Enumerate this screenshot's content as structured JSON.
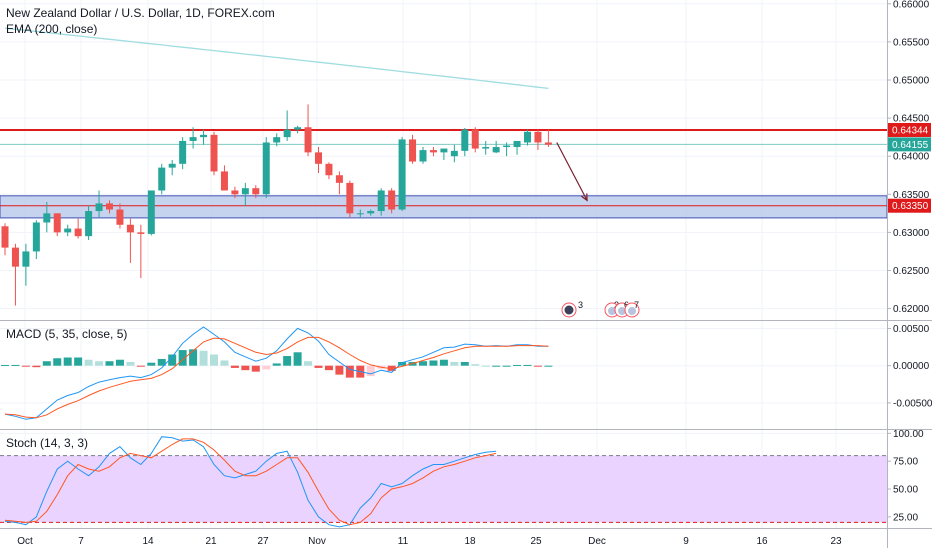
{
  "header": {
    "title": "New Zealand Dollar / U.S. Dollar, 1D, FOREX.com",
    "ema_label": "EMA (200, close)",
    "macd_label": "MACD (5, 35, close, 5)",
    "stoch_label": "Stoch (14, 3, 3)"
  },
  "colors": {
    "up": "#26a69a",
    "down": "#ef5350",
    "ema": "#9fdde0",
    "macd_line": "#2196f3",
    "signal_line": "#ff5722",
    "stoch_k": "#2196f3",
    "stoch_d": "#ff5722",
    "resistance": "#e0191b",
    "support_zone": "#b3c4e8",
    "stoch_band": "#e6ccff"
  },
  "events": {
    "left_badge_count": "3",
    "right_badge_digits": [
      "2",
      "6",
      "7"
    ]
  },
  "chart_data": [
    {
      "type": "candlestick",
      "title": "New Zealand Dollar / U.S. Dollar, 1D, FOREX.com",
      "ylim": [
        0.6185,
        0.6605
      ],
      "y_ticks": [
        "0.66000",
        "0.65500",
        "0.65000",
        "0.64500",
        "0.64000",
        "0.63500",
        "0.63000",
        "0.62500",
        "0.62000"
      ],
      "x_ticks": [
        "Oct",
        "7",
        "14",
        "21",
        "27",
        "Nov",
        "11",
        "18",
        "25",
        "Dec",
        "9",
        "16",
        "23"
      ],
      "ohlc": [
        [
          0.6308,
          0.6312,
          0.627,
          0.628
        ],
        [
          0.628,
          0.6285,
          0.6204,
          0.6255
        ],
        [
          0.6255,
          0.6285,
          0.623,
          0.6275
        ],
        [
          0.6275,
          0.6316,
          0.6265,
          0.6313
        ],
        [
          0.6313,
          0.634,
          0.63,
          0.6325
        ],
        [
          0.6325,
          0.6325,
          0.6295,
          0.63
        ],
        [
          0.63,
          0.631,
          0.6295,
          0.6305
        ],
        [
          0.6305,
          0.6318,
          0.6292,
          0.6295
        ],
        [
          0.6295,
          0.6335,
          0.629,
          0.6328
        ],
        [
          0.6328,
          0.6355,
          0.632,
          0.6338
        ],
        [
          0.6338,
          0.6342,
          0.6325,
          0.633
        ],
        [
          0.633,
          0.6338,
          0.6305,
          0.631
        ],
        [
          0.631,
          0.6318,
          0.626,
          0.63
        ],
        [
          0.63,
          0.631,
          0.624,
          0.6298
        ],
        [
          0.6298,
          0.6355,
          0.6296,
          0.6355
        ],
        [
          0.6355,
          0.639,
          0.635,
          0.6385
        ],
        [
          0.6385,
          0.6395,
          0.6375,
          0.639
        ],
        [
          0.639,
          0.6425,
          0.6383,
          0.642
        ],
        [
          0.642,
          0.6438,
          0.641,
          0.6425
        ],
        [
          0.6425,
          0.6435,
          0.6415,
          0.6428
        ],
        [
          0.6428,
          0.6432,
          0.6375,
          0.638
        ],
        [
          0.638,
          0.6388,
          0.6355,
          0.6355
        ],
        [
          0.6355,
          0.636,
          0.6345,
          0.635
        ],
        [
          0.635,
          0.6365,
          0.6335,
          0.6358
        ],
        [
          0.6358,
          0.6362,
          0.6345,
          0.635
        ],
        [
          0.635,
          0.6425,
          0.6345,
          0.6418
        ],
        [
          0.6418,
          0.643,
          0.6413,
          0.6425
        ],
        [
          0.6425,
          0.646,
          0.642,
          0.6435
        ],
        [
          0.6435,
          0.644,
          0.643,
          0.6438
        ],
        [
          0.6438,
          0.6468,
          0.64,
          0.6405
        ],
        [
          0.6405,
          0.6412,
          0.6378,
          0.639
        ],
        [
          0.639,
          0.6392,
          0.637,
          0.6375
        ],
        [
          0.6375,
          0.638,
          0.635,
          0.6365
        ],
        [
          0.6365,
          0.6368,
          0.632,
          0.6325
        ],
        [
          0.6325,
          0.633,
          0.632,
          0.6325
        ],
        [
          0.6325,
          0.633,
          0.6322,
          0.6328
        ],
        [
          0.6328,
          0.6358,
          0.6322,
          0.6355
        ],
        [
          0.6355,
          0.6358,
          0.6325,
          0.633
        ],
        [
          0.633,
          0.6425,
          0.6328,
          0.6422
        ],
        [
          0.6422,
          0.6428,
          0.639,
          0.6393
        ],
        [
          0.6393,
          0.6412,
          0.639,
          0.6408
        ],
        [
          0.6408,
          0.6412,
          0.64,
          0.6405
        ],
        [
          0.6405,
          0.641,
          0.6395,
          0.641
        ],
        [
          0.64,
          0.6415,
          0.6392,
          0.6407
        ],
        [
          0.6407,
          0.6437,
          0.64,
          0.6435
        ],
        [
          0.6435,
          0.6438,
          0.6405,
          0.641
        ],
        [
          0.641,
          0.642,
          0.6402,
          0.6412
        ],
        [
          0.6405,
          0.642,
          0.6404,
          0.6412
        ],
        [
          0.6412,
          0.6418,
          0.64,
          0.6414
        ],
        [
          0.6412,
          0.6418,
          0.6402,
          0.642
        ],
        [
          0.6418,
          0.6435,
          0.6414,
          0.6432
        ],
        [
          0.6432,
          0.6435,
          0.6408,
          0.6418
        ],
        [
          0.6418,
          0.6435,
          0.6412,
          0.6415
        ]
      ],
      "ema200": {
        "from_index": 0,
        "start": 0.6568,
        "end": 0.6489
      },
      "resistance": {
        "value": 0.64344,
        "label": "0.64344"
      },
      "last_price": {
        "value": 0.64155,
        "label": "0.64155"
      },
      "support_zone": {
        "top": 0.6348,
        "bottom": 0.6319
      },
      "support_line": {
        "value": 0.6335,
        "label": "0.63350"
      },
      "projection_arrow": {
        "from": [
          52.8,
          0.6418
        ],
        "to": [
          55.7,
          0.6342
        ]
      }
    },
    {
      "type": "line",
      "title": "MACD (5, 35, close, 5)",
      "ylim": [
        -0.0085,
        0.006
      ],
      "y_ticks": [
        "0.00500",
        "0.00000",
        "-0.00500"
      ],
      "series": [
        {
          "name": "MACD",
          "values": [
            -0.0065,
            -0.0068,
            -0.0072,
            -0.007,
            -0.0058,
            -0.0046,
            -0.004,
            -0.0036,
            -0.0028,
            -0.0022,
            -0.0019,
            -0.0016,
            -0.0014,
            -0.0016,
            -0.0012,
            -0.0003,
            0.0012,
            0.003,
            0.0042,
            0.0052,
            0.0042,
            0.0032,
            0.0018,
            0.0012,
            0.0006,
            0.001,
            0.002,
            0.0036,
            0.005,
            0.0044,
            0.0033,
            0.0015,
            0.0005,
            -0.0005,
            -0.0008,
            -0.0011,
            -0.0006,
            -0.0009,
            0.0004,
            0.0008,
            0.0012,
            0.0018,
            0.0024,
            0.0025,
            0.0029,
            0.0028,
            0.0026,
            0.0027,
            0.0026,
            0.0028,
            0.0028,
            0.0026,
            0.0026
          ]
        },
        {
          "name": "Signal",
          "values": [
            -0.0065,
            -0.0066,
            -0.0069,
            -0.007,
            -0.0066,
            -0.0058,
            -0.0052,
            -0.0047,
            -0.004,
            -0.0034,
            -0.0029,
            -0.0025,
            -0.0021,
            -0.0019,
            -0.0017,
            -0.0012,
            -0.0004,
            0.0008,
            0.002,
            0.0032,
            0.0037,
            0.0036,
            0.003,
            0.0024,
            0.0018,
            0.0015,
            0.0017,
            0.0023,
            0.0032,
            0.0038,
            0.0038,
            0.0032,
            0.0024,
            0.0015,
            0.0007,
            0.0001,
            -0.0002,
            -0.0004,
            -0.0001,
            0.0003,
            0.0007,
            0.0011,
            0.0016,
            0.002,
            0.0024,
            0.0026,
            0.0026,
            0.0026,
            0.0026,
            0.0027,
            0.0027,
            0.0027,
            0.0026
          ]
        }
      ],
      "histogram": {
        "values": [
          0.0001,
          0.0001,
          -0.0001,
          -0.0002,
          0.0006,
          0.001,
          0.0011,
          0.0011,
          0.0008,
          0.0006,
          0.0006,
          0.0008,
          0.0005,
          -0.0001,
          0.0004,
          0.0009,
          0.0015,
          0.0021,
          0.0022,
          0.002,
          0.0015,
          0.0007,
          -0.0003,
          -0.0006,
          -0.0008,
          -0.0005,
          0.0003,
          0.0013,
          0.0018,
          0.0006,
          -0.0003,
          -0.0006,
          -0.0012,
          -0.0016,
          -0.0016,
          -0.0014,
          -0.0004,
          -0.0007,
          0.0005,
          0.0005,
          0.0006,
          0.0007,
          0.0008,
          0.0005,
          0.0005,
          0.0002,
          0.0,
          0.0,
          0.0,
          0.0001,
          0.0001,
          -0.0001,
          0.0
        ]
      }
    },
    {
      "type": "line",
      "title": "Stoch (14, 3, 3)",
      "ylim": [
        15,
        103
      ],
      "y_ticks": [
        "100.00",
        "75.00",
        "50.00",
        "25.00"
      ],
      "band": [
        20,
        80
      ],
      "series": [
        {
          "name": "%K",
          "values": [
            21,
            20,
            18,
            25,
            48,
            68,
            75,
            68,
            62,
            70,
            82,
            88,
            78,
            72,
            82,
            97,
            96,
            93,
            94,
            88,
            72,
            62,
            60,
            63,
            66,
            75,
            82,
            84,
            65,
            40,
            25,
            18,
            16,
            18,
            33,
            42,
            55,
            52,
            55,
            62,
            68,
            72,
            72,
            75,
            78,
            81,
            83,
            84
          ]
        },
        {
          "name": "%D",
          "values": [
            22,
            21,
            20,
            21,
            30,
            45,
            62,
            72,
            68,
            66,
            70,
            78,
            82,
            80,
            78,
            84,
            90,
            95,
            95,
            92,
            85,
            76,
            66,
            62,
            62,
            66,
            72,
            78,
            78,
            65,
            48,
            32,
            22,
            18,
            20,
            28,
            42,
            50,
            52,
            55,
            60,
            66,
            70,
            72,
            75,
            78,
            80,
            82
          ]
        }
      ]
    }
  ]
}
